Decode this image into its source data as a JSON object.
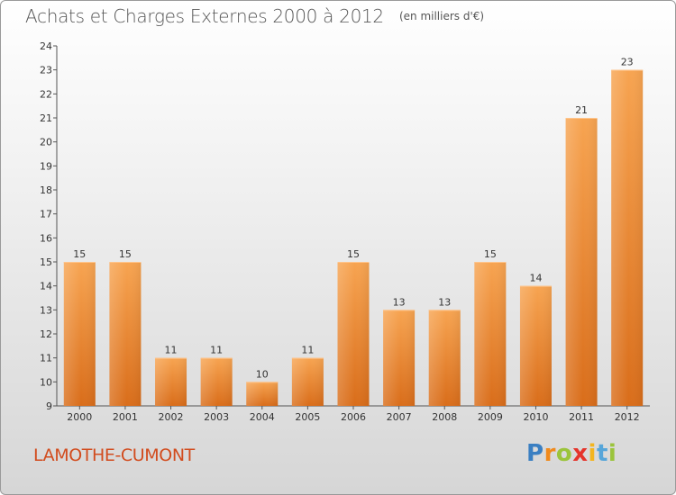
{
  "header": {
    "title": "Achats et Charges Externes 2000 à 2012",
    "unit": "(en milliers d'€)"
  },
  "footer": {
    "commune": "LAMOTHE-CUMONT",
    "brand": [
      "P",
      "r",
      "o",
      "x",
      "i",
      "t",
      "i"
    ]
  },
  "colors": {
    "bar_top": "#f7a451",
    "bar_bottom": "#d96d1a",
    "commune_text": "#d24c1e",
    "axis_text": "#333333"
  },
  "chart_data": {
    "type": "bar",
    "title": "Achats et Charges Externes 2000 à 2012",
    "subtitle": "(en milliers d'€)",
    "xlabel": "",
    "ylabel": "",
    "categories": [
      "2000",
      "2001",
      "2002",
      "2003",
      "2004",
      "2005",
      "2006",
      "2007",
      "2008",
      "2009",
      "2010",
      "2011",
      "2012"
    ],
    "values": [
      15,
      15,
      11,
      11,
      10,
      11,
      15,
      13,
      13,
      15,
      14,
      21,
      23
    ],
    "ylim": [
      9,
      24
    ],
    "yticks": [
      9,
      10,
      11,
      12,
      13,
      14,
      15,
      16,
      17,
      18,
      19,
      20,
      21,
      22,
      23,
      24
    ],
    "grid": false,
    "legend": "none"
  }
}
